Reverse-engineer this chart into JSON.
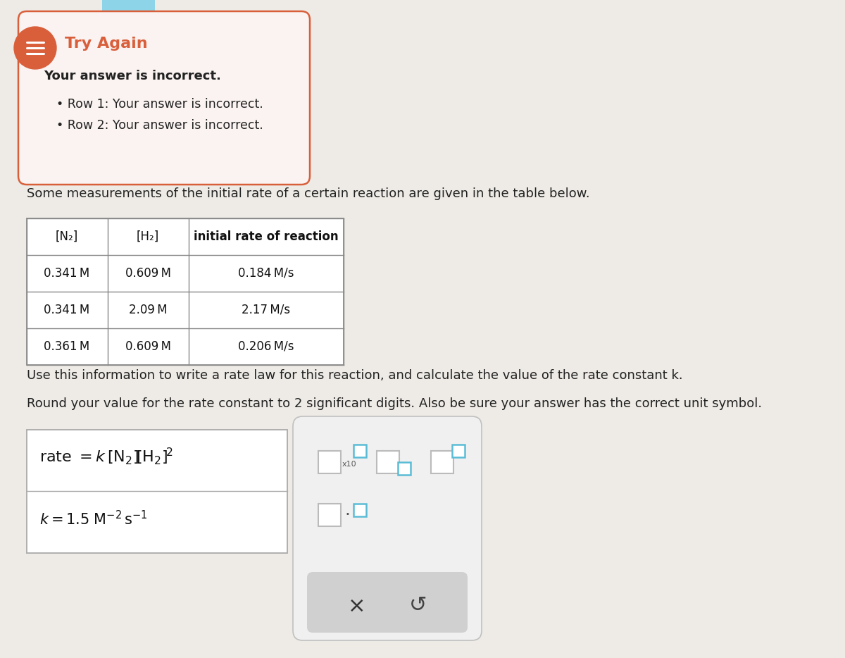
{
  "page_bg": "#eeebe6",
  "try_again_color": "#d95f3b",
  "try_again_box_bg": "#faf3f1",
  "try_again_box_border": "#d95f3b",
  "try_again_text": "Try Again",
  "incorrect_text": "Your answer is incorrect.",
  "row1_text": "Row 1: Your answer is incorrect.",
  "row2_text": "Row 2: Your answer is incorrect.",
  "problem_text": "Some measurements of the initial rate of a certain reaction are given in the table below.",
  "table_headers": [
    "[N₂]",
    "[H₂]",
    "initial rate of reaction"
  ],
  "table_rows": [
    [
      "0.341 M",
      "0.609 M",
      "0.184 M/s"
    ],
    [
      "0.341 M",
      "2.09 M",
      "2.17 M/s"
    ],
    [
      "0.361 M",
      "0.609 M",
      "0.206 M/s"
    ]
  ],
  "instruction1": "Use this information to write a rate law for this reaction, and calculate the value of the rate constant k.",
  "instruction2": "Round your value for the rate constant to 2 significant digits. Also be sure your answer has the correct unit symbol.",
  "input_box_color_filled": "#5bbcd6",
  "input_box_color_empty": "#cccccc",
  "toolbar_bg": "#e8e8e8",
  "toolbar_border": "#c0c0c0",
  "x_button_color": "#444444",
  "undo_button_color": "#444444"
}
